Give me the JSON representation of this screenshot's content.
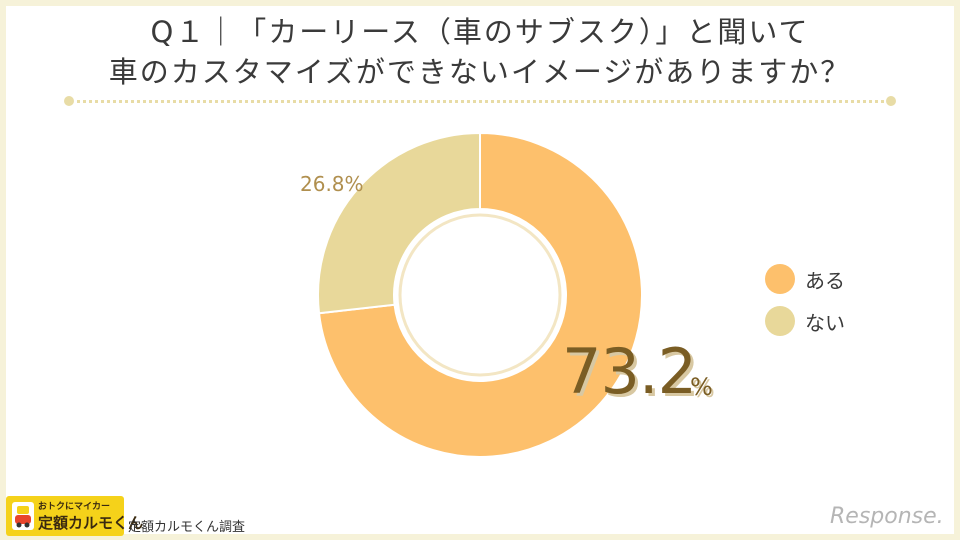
{
  "title": {
    "line1": "Q１｜「カーリース（車のサブスク）」と聞いて",
    "line2": "車のカスタマイズができないイメージがありますか？"
  },
  "chart_data": {
    "type": "pie",
    "labels": [
      "ある",
      "ない"
    ],
    "values": [
      73.2,
      26.8
    ],
    "colors": [
      "#fdc06c",
      "#e8d89a"
    ],
    "data_labels": [
      "73.2",
      "26.8%"
    ],
    "data_label_unit": "%",
    "legend_position": "right"
  },
  "legend": [
    {
      "label": "ある",
      "color": "#fdc06c"
    },
    {
      "label": "ない",
      "color": "#e8d89a"
    }
  ],
  "footer": {
    "logo_small": "おトクにマイカー",
    "logo_main": "定額カルモくん",
    "source": "定額カルモくん調査",
    "brand": "Response."
  }
}
